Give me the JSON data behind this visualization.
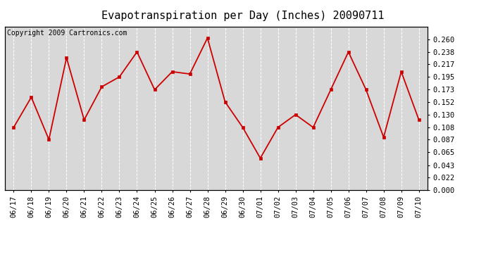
{
  "title": "Evapotranspiration per Day (Inches) 20090711",
  "copyright": "Copyright 2009 Cartronics.com",
  "dates": [
    "06/17",
    "06/18",
    "06/19",
    "06/20",
    "06/21",
    "06/22",
    "06/23",
    "06/24",
    "06/25",
    "06/26",
    "06/27",
    "06/28",
    "06/29",
    "06/30",
    "07/01",
    "07/02",
    "07/03",
    "07/04",
    "07/05",
    "07/06",
    "07/07",
    "07/08",
    "07/09",
    "07/10"
  ],
  "values": [
    0.108,
    0.16,
    0.087,
    0.228,
    0.121,
    0.178,
    0.195,
    0.238,
    0.173,
    0.204,
    0.2,
    0.262,
    0.152,
    0.108,
    0.055,
    0.108,
    0.13,
    0.108,
    0.173,
    0.238,
    0.173,
    0.091,
    0.204,
    0.121
  ],
  "line_color": "#cc0000",
  "marker": "s",
  "marker_size": 3,
  "background_color": "#d8d8d8",
  "grid_color": "#ffffff",
  "ylim": [
    0.0,
    0.282
  ],
  "yticks": [
    0.0,
    0.022,
    0.043,
    0.065,
    0.087,
    0.108,
    0.13,
    0.152,
    0.173,
    0.195,
    0.217,
    0.238,
    0.26
  ],
  "title_fontsize": 11,
  "copyright_fontsize": 7,
  "tick_fontsize": 7.5,
  "fig_width": 6.9,
  "fig_height": 3.75,
  "dpi": 100
}
